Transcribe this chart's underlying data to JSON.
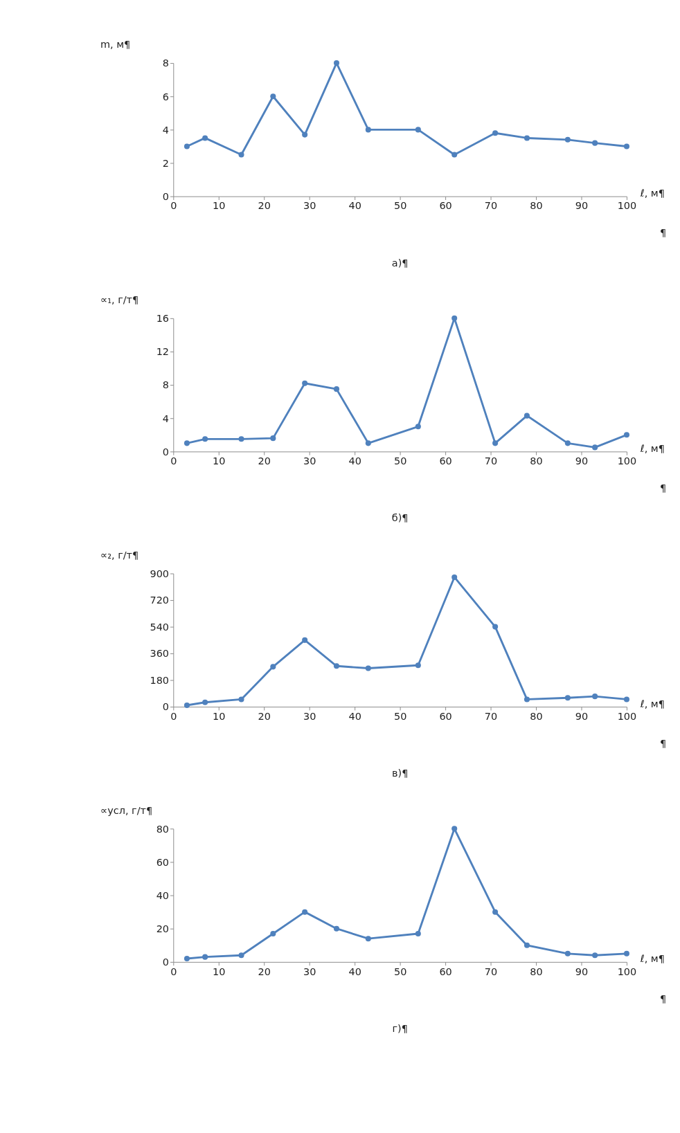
{
  "chart_data": [
    {
      "type": "line",
      "xlabel": "ℓ, м¶",
      "ylabel": "m, м¶",
      "annotations": [
        "¶",
        "а)¶"
      ],
      "x": [
        3,
        7,
        15,
        22,
        29,
        36,
        43,
        54,
        62,
        71,
        78,
        87,
        93,
        100
      ],
      "series": [
        {
          "color": "#4f81bd",
          "values": [
            3,
            3.5,
            2.5,
            6,
            3.7,
            8,
            4,
            4,
            2.5,
            3.8,
            3.5,
            3.4,
            3.2,
            3
          ]
        }
      ],
      "xlim": [
        0,
        100
      ],
      "xticks": [
        0,
        10,
        20,
        30,
        40,
        50,
        60,
        70,
        80,
        90,
        100
      ],
      "ylim": [
        0,
        8
      ],
      "yticks": [
        0,
        2,
        4,
        6,
        8
      ],
      "grid": false,
      "legend": false,
      "marker": "circle",
      "line_style": "solid"
    },
    {
      "type": "line",
      "xlabel": "ℓ, м¶",
      "ylabel": "∝₁, г/т¶",
      "annotations": [
        "¶",
        "б)¶"
      ],
      "x": [
        3,
        7,
        15,
        22,
        29,
        36,
        43,
        54,
        62,
        71,
        78,
        87,
        93,
        100
      ],
      "series": [
        {
          "color": "#4f81bd",
          "values": [
            1,
            1.5,
            1.5,
            1.6,
            8.2,
            7.5,
            1,
            3,
            16,
            1,
            4.3,
            1,
            0.5,
            2
          ]
        }
      ],
      "xlim": [
        0,
        100
      ],
      "xticks": [
        0,
        10,
        20,
        30,
        40,
        50,
        60,
        70,
        80,
        90,
        100
      ],
      "ylim": [
        0,
        16
      ],
      "yticks": [
        0,
        4,
        8,
        12,
        16
      ],
      "grid": false,
      "legend": false,
      "marker": "circle",
      "line_style": "solid"
    },
    {
      "type": "line",
      "xlabel": "ℓ, м¶",
      "ylabel": "∝₂, г/т¶",
      "annotations": [
        "¶",
        "в)¶"
      ],
      "x": [
        3,
        7,
        15,
        22,
        29,
        36,
        43,
        54,
        62,
        71,
        78,
        87,
        93,
        100
      ],
      "series": [
        {
          "color": "#4f81bd",
          "values": [
            10,
            30,
            50,
            270,
            450,
            275,
            260,
            280,
            875,
            540,
            50,
            60,
            70,
            50
          ]
        }
      ],
      "xlim": [
        0,
        100
      ],
      "xticks": [
        0,
        10,
        20,
        30,
        40,
        50,
        60,
        70,
        80,
        90,
        100
      ],
      "ylim": [
        0,
        900
      ],
      "yticks": [
        0,
        180,
        360,
        540,
        720,
        900
      ],
      "grid": false,
      "legend": false,
      "marker": "circle",
      "line_style": "solid"
    },
    {
      "type": "line",
      "xlabel": "ℓ, м¶",
      "ylabel": "∝усл, г/т¶",
      "annotations": [
        "¶",
        "г)¶"
      ],
      "x": [
        3,
        7,
        15,
        22,
        29,
        36,
        43,
        54,
        62,
        71,
        78,
        87,
        93,
        100
      ],
      "series": [
        {
          "color": "#4f81bd",
          "values": [
            2,
            3,
            4,
            17,
            30,
            20,
            14,
            17,
            80,
            30,
            10,
            5,
            4,
            5
          ]
        }
      ],
      "xlim": [
        0,
        100
      ],
      "xticks": [
        0,
        10,
        20,
        30,
        40,
        50,
        60,
        70,
        80,
        90,
        100
      ],
      "ylim": [
        0,
        80
      ],
      "yticks": [
        0,
        20,
        40,
        60,
        80
      ],
      "grid": false,
      "legend": false,
      "marker": "circle",
      "line_style": "solid"
    }
  ]
}
